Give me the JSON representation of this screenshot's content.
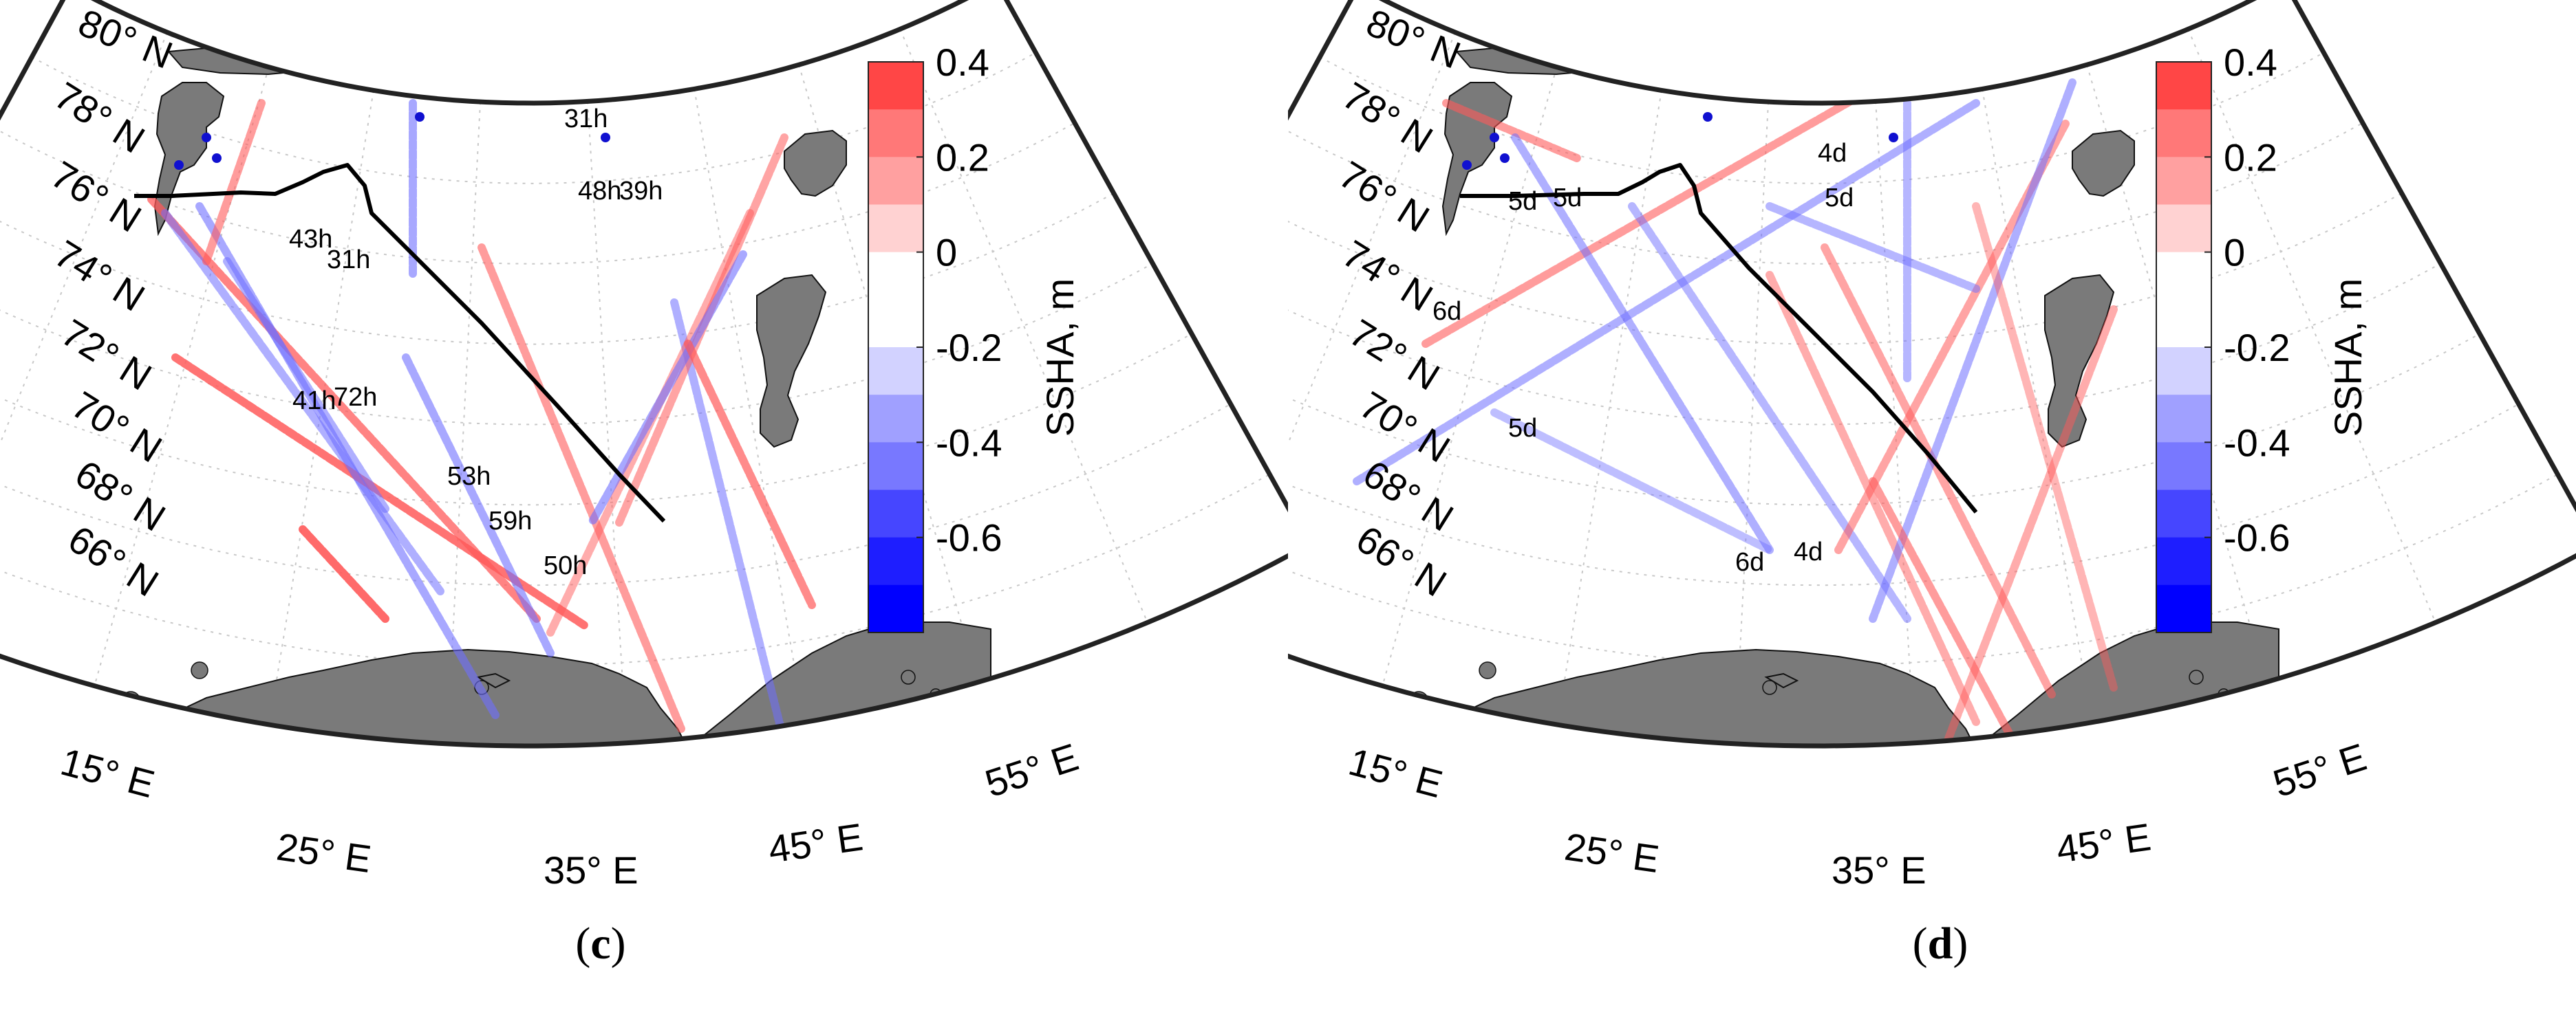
{
  "panels": [
    {
      "id": "c",
      "caption_open": "(",
      "caption_letter": "c",
      "caption_close": ")",
      "track_labels": [
        "43h",
        "31h",
        "31h",
        "48h",
        "39h",
        "41h",
        "72h",
        "53h",
        "59h",
        "50h"
      ]
    },
    {
      "id": "d",
      "caption_open": "(",
      "caption_letter": "d",
      "caption_close": ")",
      "track_labels": [
        "5d",
        "5d",
        "4d",
        "5d",
        "6d",
        "5d",
        "6d",
        "4d"
      ]
    }
  ],
  "lat_labels": [
    "80° N",
    "78° N",
    "76° N",
    "74° N",
    "72° N",
    "70° N",
    "68° N",
    "66° N"
  ],
  "lon_labels": [
    "15° E",
    "25° E",
    "35° E",
    "45° E",
    "55° E"
  ],
  "colorbar": {
    "title": "SSHA, m",
    "ticks": [
      "0.4",
      "0.2",
      "0",
      "-0.2",
      "-0.4",
      "-0.6"
    ],
    "levels": [
      "#ff4646",
      "#ff7878",
      "#ffa0a0",
      "#ffd2d2",
      "#ffffff",
      "#ffffff",
      "#d2d2ff",
      "#a0a0ff",
      "#7878ff",
      "#4646ff",
      "#1e1eff",
      "#0000ff"
    ]
  },
  "colors": {
    "land": "#7a7a7a",
    "sea": "#ffffff",
    "frame": "#222222",
    "positive_track": "#ff5a5a",
    "negative_track": "#6e6eff",
    "boundary_line": "#000000"
  }
}
